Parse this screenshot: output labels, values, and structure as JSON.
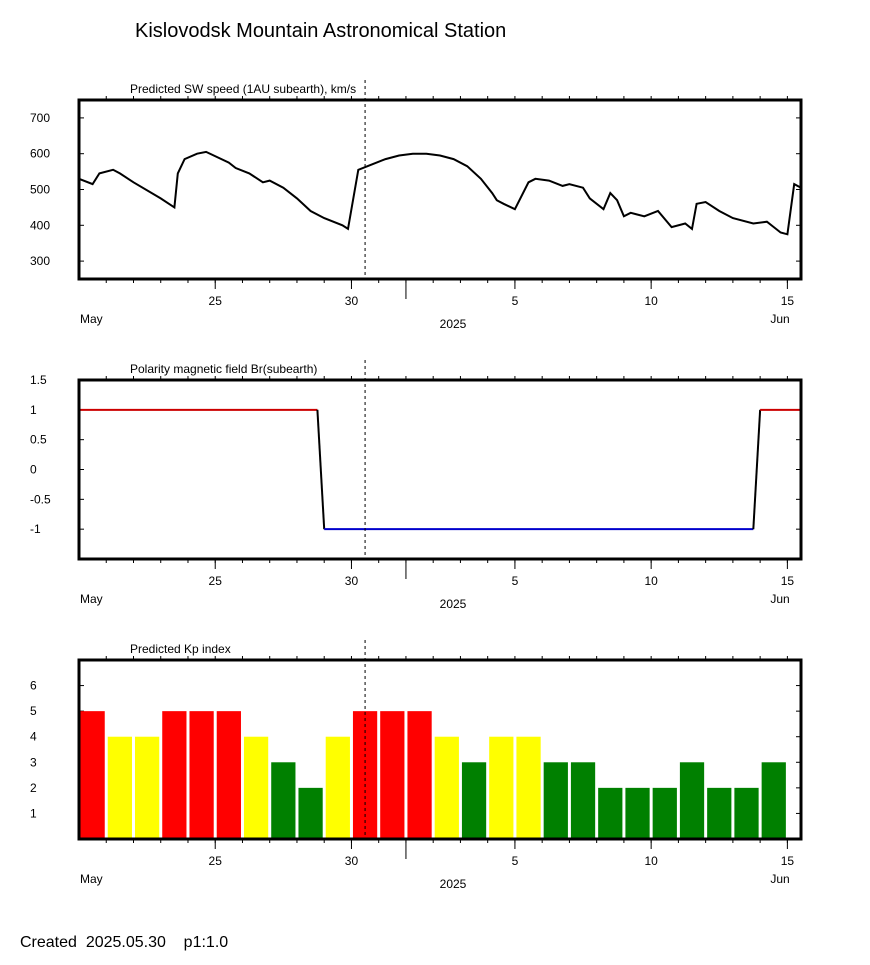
{
  "title": "Kislovodsk Mountain Astronomical Station",
  "footer": "Created  2025.05.30    p1:1.0",
  "colors": {
    "red": "#ff0000",
    "yellow": "#ffff00",
    "green": "#008000",
    "line": "#000000",
    "positive": "#cc0000",
    "negative": "#0000cc"
  },
  "chart_data": [
    {
      "type": "line",
      "title": "Predicted SW speed (1AU subearth), km/s",
      "xlabel": "2025",
      "xlim": [
        "2025-05-20",
        "2025-06-15T12:00"
      ],
      "ylim": [
        250,
        750
      ],
      "yticks": [
        "700",
        "600",
        "500",
        "400",
        "300"
      ],
      "ytick_values": [
        700,
        600,
        500,
        400,
        300
      ],
      "xticks": [
        "25",
        "30",
        "5",
        "10",
        "15"
      ],
      "month_labels": [
        "May",
        "Jun"
      ],
      "current_time": "2025-05-30T12:00",
      "grid": false,
      "series": [
        {
          "x": [
            "2025-05-20T00:00",
            "2025-05-20T12:00",
            "2025-05-20T18:00",
            "2025-05-21T06:00",
            "2025-05-21T12:00",
            "2025-05-22T00:00",
            "2025-05-23T00:00",
            "2025-05-23T12:00",
            "2025-05-23T15:00",
            "2025-05-23T21:00",
            "2025-05-24T08:00",
            "2025-05-24T16:00",
            "2025-05-25T12:00",
            "2025-05-25T18:00",
            "2025-05-26T06:00",
            "2025-05-26T18:00",
            "2025-05-27T00:00",
            "2025-05-27T12:00",
            "2025-05-28T00:00",
            "2025-05-28T12:00",
            "2025-05-29T00:00",
            "2025-05-29T16:00",
            "2025-05-29T21:00",
            "2025-05-30T06:00",
            "2025-05-30T18:00",
            "2025-05-31T06:00",
            "2025-05-31T18:00",
            "2025-06-01T06:00",
            "2025-06-01T18:00",
            "2025-06-02T06:00",
            "2025-06-02T18:00",
            "2025-06-03T06:00",
            "2025-06-03T18:00",
            "2025-06-04T04:00",
            "2025-06-04T08:00",
            "2025-06-04T14:00",
            "2025-06-05T00:00",
            "2025-06-05T12:00",
            "2025-06-05T18:00",
            "2025-06-06T06:00",
            "2025-06-06T18:00",
            "2025-06-07T00:00",
            "2025-06-07T12:00",
            "2025-06-07T18:00",
            "2025-06-08T06:00",
            "2025-06-08T12:00",
            "2025-06-08T18:00",
            "2025-06-09T00:00",
            "2025-06-09T06:00",
            "2025-06-09T18:00",
            "2025-06-10T06:00",
            "2025-06-10T18:00",
            "2025-06-11T06:00",
            "2025-06-11T12:00",
            "2025-06-11T16:00",
            "2025-06-12T00:00",
            "2025-06-12T12:00",
            "2025-06-13T00:00",
            "2025-06-13T18:00",
            "2025-06-14T06:00",
            "2025-06-14T12:00",
            "2025-06-14T18:00",
            "2025-06-15T00:00",
            "2025-06-15T06:00",
            "2025-06-15T12:00"
          ],
          "y": [
            530,
            515,
            545,
            555,
            545,
            520,
            475,
            450,
            545,
            585,
            600,
            605,
            575,
            560,
            545,
            520,
            525,
            505,
            475,
            440,
            420,
            400,
            390,
            555,
            570,
            585,
            595,
            600,
            600,
            595,
            585,
            565,
            530,
            490,
            470,
            460,
            445,
            520,
            530,
            525,
            510,
            515,
            505,
            475,
            445,
            490,
            470,
            425,
            435,
            425,
            440,
            395,
            405,
            390,
            460,
            465,
            440,
            420,
            405,
            410,
            395,
            380,
            375,
            515,
            505
          ]
        }
      ]
    },
    {
      "type": "line",
      "title": "Polarity magnetic field  Br(subearth)",
      "xlabel": "2025",
      "xlim": [
        "2025-05-20",
        "2025-06-15T12:00"
      ],
      "ylim": [
        -1.5,
        1.5
      ],
      "yticks": [
        "1.5",
        "1",
        "0.5",
        "0",
        "-0.5",
        "-1"
      ],
      "ytick_values": [
        1.5,
        1,
        0.5,
        0,
        -0.5,
        -1
      ],
      "xticks": [
        "25",
        "30",
        "5",
        "10",
        "15"
      ],
      "month_labels": [
        "May",
        "Jun"
      ],
      "current_time": "2025-05-30T12:00",
      "grid": false,
      "series": [
        {
          "x": [
            "2025-05-20T00:00",
            "2025-05-28T18:00",
            "2025-05-29T00:00",
            "2025-06-13T18:00",
            "2025-06-14T00:00",
            "2025-06-15T12:00"
          ],
          "y": [
            1,
            1,
            -1,
            -1,
            1,
            1
          ]
        }
      ]
    },
    {
      "type": "bar",
      "title": "Predicted Kp index",
      "xlabel": "2025",
      "xlim": [
        "2025-05-20",
        "2025-06-15T12:00"
      ],
      "ylim": [
        0,
        7
      ],
      "yticks": [
        "6",
        "5",
        "4",
        "3",
        "2",
        "1"
      ],
      "ytick_values": [
        6,
        5,
        4,
        3,
        2,
        1
      ],
      "xticks": [
        "25",
        "30",
        "5",
        "10",
        "15"
      ],
      "month_labels": [
        "May",
        "Jun"
      ],
      "current_time": "2025-05-30T12:00",
      "grid": false,
      "categories": [
        "2025-05-20",
        "2025-05-21",
        "2025-05-22",
        "2025-05-23",
        "2025-05-24",
        "2025-05-25",
        "2025-05-26",
        "2025-05-27",
        "2025-05-28",
        "2025-05-29",
        "2025-05-30",
        "2025-05-31",
        "2025-06-01",
        "2025-06-02",
        "2025-06-03",
        "2025-06-04",
        "2025-06-05",
        "2025-06-06",
        "2025-06-07",
        "2025-06-08",
        "2025-06-09",
        "2025-06-10",
        "2025-06-11",
        "2025-06-12",
        "2025-06-13",
        "2025-06-14"
      ],
      "values": [
        5,
        4,
        4,
        5,
        5,
        5,
        4,
        3,
        2,
        4,
        5,
        5,
        5,
        4,
        3,
        4,
        4,
        3,
        3,
        2,
        2,
        2,
        3,
        2,
        2,
        3
      ]
    }
  ]
}
